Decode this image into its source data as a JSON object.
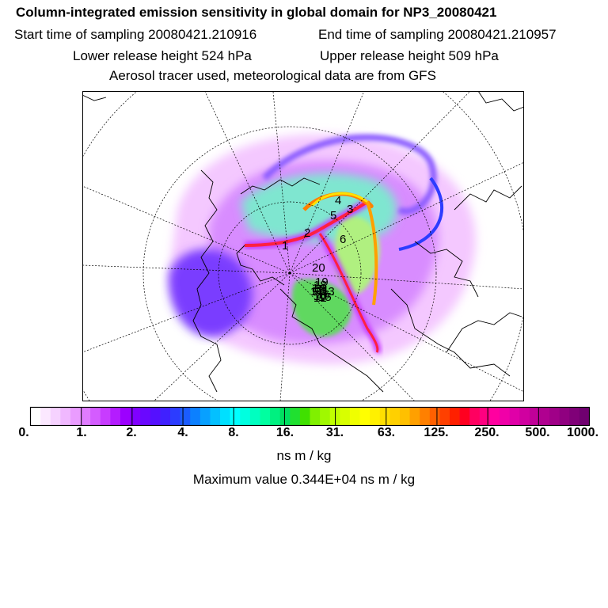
{
  "header": {
    "title": "Column-integrated emission sensitivity in global domain for NP3_20080421",
    "start_label": "Start time of sampling 20080421.210916",
    "end_label": "End time of sampling 20080421.210957",
    "lower_label": "Lower release height  524 hPa",
    "upper_label": "Upper release height  509 hPa",
    "tracer_label": "Aerosol tracer used, meteorological data are from GFS"
  },
  "map": {
    "trajectory_labels": [
      "1",
      "2",
      "3",
      "4",
      "5",
      "6",
      "7",
      "8",
      "9",
      "10",
      "11",
      "12",
      "13",
      "14",
      "15",
      "16",
      "17",
      "18",
      "19",
      "20"
    ]
  },
  "colorbar": {
    "tick_labels": [
      "0.",
      "1.",
      "2.",
      "4.",
      "8.",
      "16.",
      "31.",
      "63.",
      "125.",
      "250.",
      "500.",
      "1000."
    ],
    "colors": [
      "#ffffff",
      "#fbe8ff",
      "#f6d2ff",
      "#f0b8ff",
      "#ea9cff",
      "#e07cff",
      "#d45cff",
      "#c83cff",
      "#b41cff",
      "#9c00ff",
      "#8000ff",
      "#6a08ff",
      "#5510ff",
      "#4020ff",
      "#2c3cff",
      "#1a5cff",
      "#0c80ff",
      "#08a0ff",
      "#04c0ff",
      "#00e0ff",
      "#00ffff",
      "#00ffe0",
      "#00ffc0",
      "#00ffa0",
      "#00f080",
      "#00e060",
      "#20e030",
      "#40e000",
      "#80f000",
      "#a0f800",
      "#c0ff00",
      "#d8ff00",
      "#f0ff00",
      "#ffff00",
      "#fff000",
      "#ffe000",
      "#ffd000",
      "#ffc000",
      "#ffa000",
      "#ff8000",
      "#ff6000",
      "#ff4000",
      "#ff2000",
      "#ff0020",
      "#ff0060",
      "#ff0080",
      "#ff00a0",
      "#f000a8",
      "#e000a8",
      "#d000a0",
      "#c00098",
      "#b00090",
      "#a00088",
      "#900080",
      "#800078",
      "#700070"
    ],
    "unit_label": "ns m / kg",
    "max_label": "Maximum value  0.344E+04 ns m / kg"
  }
}
